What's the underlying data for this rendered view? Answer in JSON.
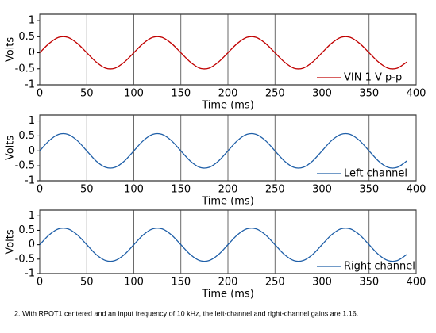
{
  "chart_data": [
    {
      "type": "line",
      "xlabel": "Time (ms)",
      "ylabel": "Volts",
      "x": [
        0,
        10,
        20,
        30,
        40,
        50,
        60,
        70,
        80,
        90,
        100,
        110,
        120,
        130,
        140,
        150,
        160,
        170,
        180,
        190,
        200,
        210,
        220,
        230,
        240,
        250,
        260,
        270,
        280,
        290,
        300,
        310,
        320,
        330,
        340,
        350,
        360,
        370,
        380,
        390
      ],
      "series": [
        {
          "name": "VIN 1 V p-p",
          "color": "#c00000",
          "values": [
            0,
            0.29,
            0.48,
            0.48,
            0.29,
            0,
            -0.29,
            -0.48,
            -0.48,
            -0.29,
            0,
            0.29,
            0.48,
            0.48,
            0.29,
            0,
            -0.29,
            -0.48,
            -0.48,
            -0.29,
            0,
            0.29,
            0.48,
            0.48,
            0.29,
            0,
            -0.29,
            -0.48,
            -0.48,
            -0.29,
            0,
            0.29,
            0.48,
            0.48,
            0.29,
            0,
            -0.29,
            -0.48,
            -0.48,
            -0.29
          ]
        }
      ],
      "xlim": [
        0,
        400
      ],
      "xticks": [
        0,
        50,
        100,
        150,
        200,
        250,
        300,
        350,
        400
      ],
      "ylim": [
        -1,
        1.2
      ],
      "yticks": [
        1,
        0.5,
        0,
        -0.5,
        -1
      ],
      "grid": true,
      "legend": "lower right"
    },
    {
      "type": "line",
      "xlabel": "Time (ms)",
      "ylabel": "Volts",
      "x": [
        0,
        10,
        20,
        30,
        40,
        50,
        60,
        70,
        80,
        90,
        100,
        110,
        120,
        130,
        140,
        150,
        160,
        170,
        180,
        190,
        200,
        210,
        220,
        230,
        240,
        250,
        260,
        270,
        280,
        290,
        300,
        310,
        320,
        330,
        340,
        350,
        360,
        370,
        380,
        390
      ],
      "series": [
        {
          "name": "Left channel",
          "color": "#1f5fa8",
          "values": [
            0,
            0.34,
            0.55,
            0.55,
            0.34,
            0,
            -0.34,
            -0.55,
            -0.55,
            -0.34,
            0,
            0.34,
            0.55,
            0.55,
            0.34,
            0,
            -0.34,
            -0.55,
            -0.55,
            -0.34,
            0,
            0.34,
            0.55,
            0.55,
            0.34,
            0,
            -0.34,
            -0.55,
            -0.55,
            -0.34,
            0,
            0.34,
            0.55,
            0.55,
            0.34,
            0,
            -0.34,
            -0.55,
            -0.55,
            -0.34
          ]
        }
      ],
      "xlim": [
        0,
        400
      ],
      "xticks": [
        0,
        50,
        100,
        150,
        200,
        250,
        300,
        350,
        400
      ],
      "ylim": [
        -1,
        1.2
      ],
      "yticks": [
        1,
        0.5,
        0,
        -0.5,
        -1
      ],
      "grid": true,
      "legend": "lower right"
    },
    {
      "type": "line",
      "xlabel": "Time (ms)",
      "ylabel": "Volts",
      "x": [
        0,
        10,
        20,
        30,
        40,
        50,
        60,
        70,
        80,
        90,
        100,
        110,
        120,
        130,
        140,
        150,
        160,
        170,
        180,
        190,
        200,
        210,
        220,
        230,
        240,
        250,
        260,
        270,
        280,
        290,
        300,
        310,
        320,
        330,
        340,
        350,
        360,
        370,
        380,
        390
      ],
      "series": [
        {
          "name": "Right channel",
          "color": "#1f5fa8",
          "values": [
            0,
            0.34,
            0.55,
            0.55,
            0.34,
            0,
            -0.34,
            -0.55,
            -0.55,
            -0.34,
            0,
            0.34,
            0.55,
            0.55,
            0.34,
            0,
            -0.34,
            -0.55,
            -0.55,
            -0.34,
            0,
            0.34,
            0.55,
            0.55,
            0.34,
            0,
            -0.34,
            -0.55,
            -0.55,
            -0.34,
            0,
            0.34,
            0.55,
            0.55,
            0.34,
            0,
            -0.34,
            -0.55,
            -0.55,
            -0.34
          ]
        }
      ],
      "xlim": [
        0,
        400
      ],
      "xticks": [
        0,
        50,
        100,
        150,
        200,
        250,
        300,
        350,
        400
      ],
      "ylim": [
        -1,
        1.2
      ],
      "yticks": [
        1,
        0.5,
        0,
        -0.5,
        -1
      ],
      "grid": true,
      "legend": "lower right"
    }
  ],
  "caption": "2. With RPOT1 centered and an input frequency of 10 kHz, the left-channel and right-channel gains are 1.16."
}
